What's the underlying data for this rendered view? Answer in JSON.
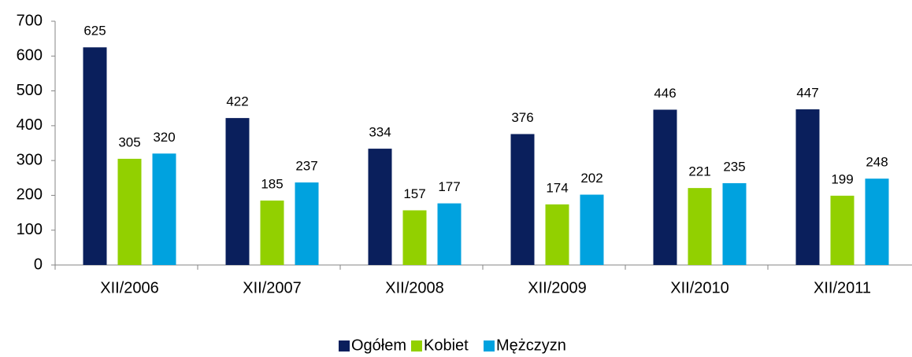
{
  "chart_data": {
    "type": "bar",
    "categories": [
      "XII/2006",
      "XII/2007",
      "XII/2008",
      "XII/2009",
      "XII/2010",
      "XII/2011"
    ],
    "series": [
      {
        "name": "Ogółem",
        "color": "#0a1f5c",
        "values": [
          625,
          422,
          334,
          376,
          446,
          447
        ]
      },
      {
        "name": "Kobiet",
        "color": "#92d000",
        "values": [
          305,
          185,
          157,
          174,
          221,
          199
        ]
      },
      {
        "name": "Mężczyzn",
        "color": "#00a2df",
        "values": [
          320,
          237,
          177,
          202,
          235,
          248
        ]
      }
    ],
    "ylim": [
      0,
      700
    ],
    "yticks": [
      0,
      100,
      200,
      300,
      400,
      500,
      600,
      700
    ],
    "grid": false,
    "legend": "bottom"
  }
}
